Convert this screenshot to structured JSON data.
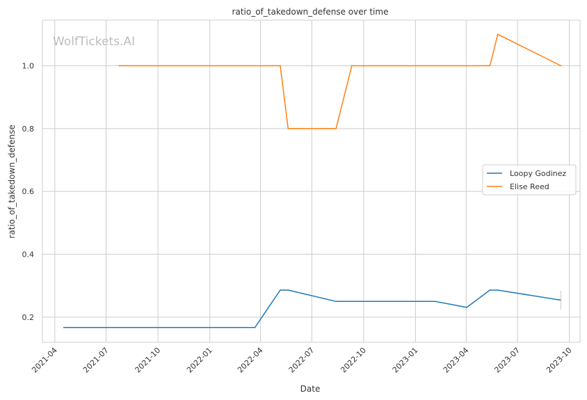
{
  "chart_data": {
    "type": "line",
    "title": "ratio_of_takedown_defense over time",
    "xlabel": "Date",
    "ylabel": "ratio_of_takedown_defense",
    "watermark": "WolfTickets.AI",
    "x_type": "date",
    "xlim": [
      "2021-03-10",
      "2023-10-20"
    ],
    "ylim": [
      0.12,
      1.145
    ],
    "x_ticks": [
      "2021-04-01",
      "2021-07-01",
      "2021-10-01",
      "2022-01-01",
      "2022-04-01",
      "2022-07-01",
      "2022-10-01",
      "2023-01-01",
      "2023-04-01",
      "2023-07-01",
      "2023-10-01"
    ],
    "x_tick_labels": [
      "2021-04",
      "2021-07",
      "2021-10",
      "2022-01",
      "2022-04",
      "2022-07",
      "2022-10",
      "2023-01",
      "2023-04",
      "2023-07",
      "2023-10"
    ],
    "y_ticks": [
      0.2,
      0.4,
      0.6,
      0.8,
      1.0
    ],
    "y_tick_labels": [
      "0.2",
      "0.4",
      "0.6",
      "0.8",
      "1.0"
    ],
    "grid": true,
    "legend_position": "center-right",
    "series": [
      {
        "name": "Loopy Godinez",
        "color": "#1f77b4",
        "points": [
          {
            "x": "2021-04-17",
            "y": 0.167
          },
          {
            "x": "2022-03-22",
            "y": 0.167
          },
          {
            "x": "2022-05-06",
            "y": 0.286
          },
          {
            "x": "2022-05-20",
            "y": 0.286
          },
          {
            "x": "2022-08-13",
            "y": 0.25
          },
          {
            "x": "2023-02-05",
            "y": 0.25
          },
          {
            "x": "2023-04-02",
            "y": 0.231
          },
          {
            "x": "2023-05-13",
            "y": 0.286
          },
          {
            "x": "2023-05-27",
            "y": 0.286
          },
          {
            "x": "2023-09-16",
            "y": 0.254
          }
        ]
      },
      {
        "name": "Elise Reed",
        "color": "#ff7f0e",
        "points": [
          {
            "x": "2021-07-24",
            "y": 1.0
          },
          {
            "x": "2022-05-06",
            "y": 1.0
          },
          {
            "x": "2022-05-20",
            "y": 0.8
          },
          {
            "x": "2022-08-13",
            "y": 0.8
          },
          {
            "x": "2022-09-10",
            "y": 1.0
          },
          {
            "x": "2023-05-13",
            "y": 1.0
          },
          {
            "x": "2023-05-27",
            "y": 1.1
          },
          {
            "x": "2023-09-16",
            "y": 1.0
          }
        ]
      }
    ]
  }
}
